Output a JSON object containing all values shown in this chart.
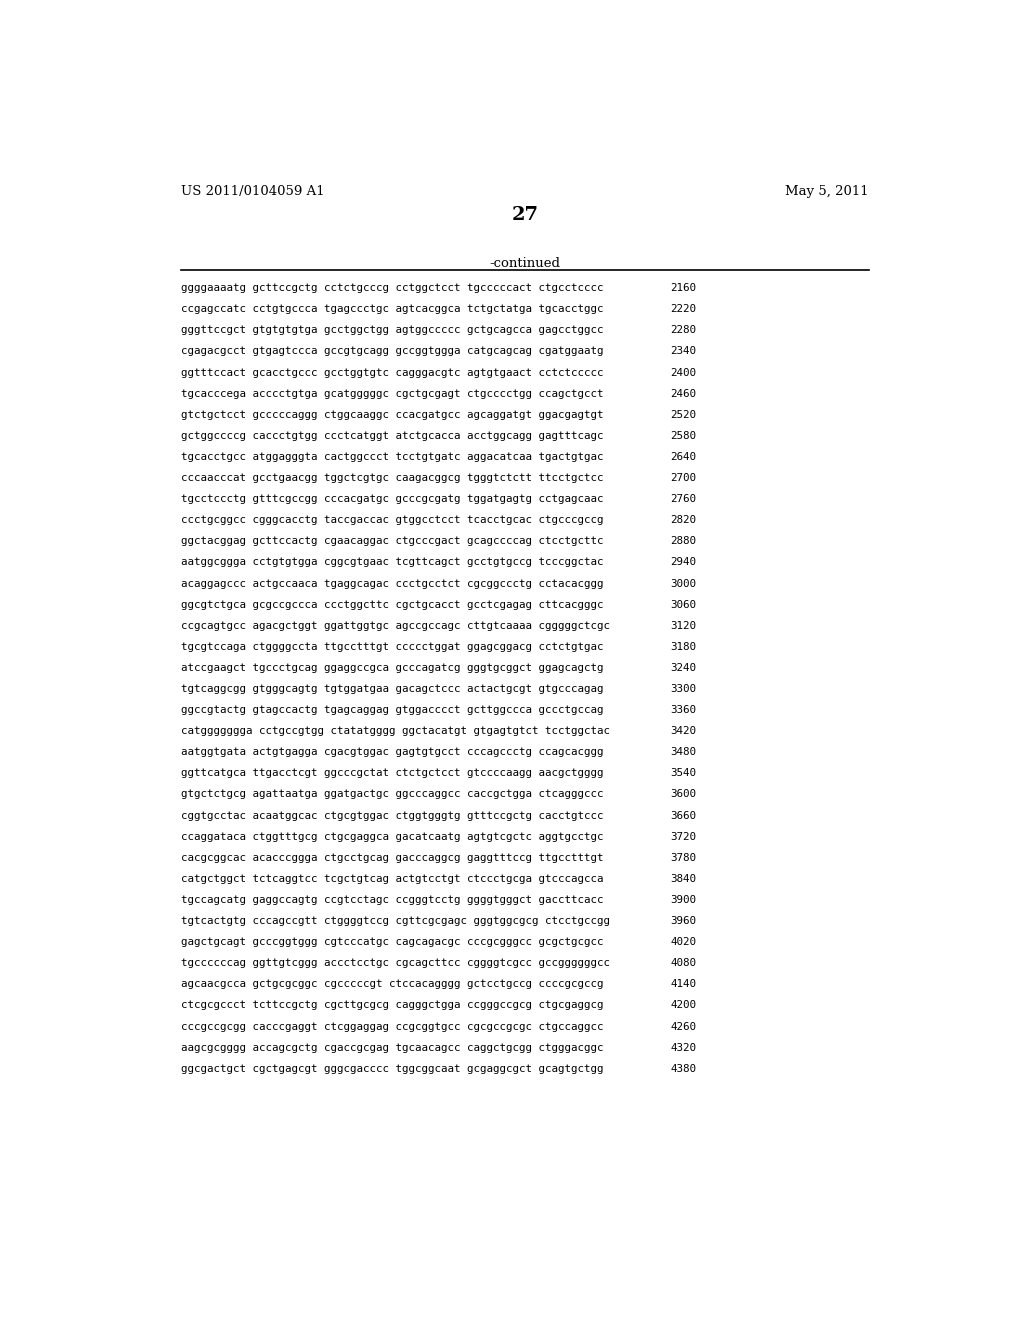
{
  "header_left": "US 2011/0104059 A1",
  "header_right": "May 5, 2011",
  "page_number": "27",
  "continued_label": "-continued",
  "background_color": "#ffffff",
  "text_color": "#000000",
  "sequence_lines": [
    [
      "ggggaaaatg gcttccgctg cctctgcccg cctggctcct tgcccccact ctgcctcccc",
      "2160"
    ],
    [
      "ccgagccatc cctgtgccca tgagccctgc agtcacggca tctgctatga tgcacctggc",
      "2220"
    ],
    [
      "gggttccgct gtgtgtgtga gcctggctgg agtggccccc gctgcagcca gagcctggcc",
      "2280"
    ],
    [
      "cgagacgcct gtgagtccca gccgtgcagg gccggtggga catgcagcag cgatggaatg",
      "2340"
    ],
    [
      "ggtttccact gcacctgccc gcctggtgtc cagggacgtc agtgtgaact cctctccccc",
      "2400"
    ],
    [
      "tgcacccega acccctgtga gcatgggggc cgctgcgagt ctgcccctgg ccagctgcct",
      "2460"
    ],
    [
      "gtctgctcct gcccccaggg ctggcaaggc ccacgatgcc agcaggatgt ggacgagtgt",
      "2520"
    ],
    [
      "gctggccccg caccctgtgg ccctcatggt atctgcacca acctggcagg gagtttcagc",
      "2580"
    ],
    [
      "tgcacctgcc atggagggta cactggccct tcctgtgatc aggacatcaa tgactgtgac",
      "2640"
    ],
    [
      "cccaacccat gcctgaacgg tggctcgtgc caagacggcg tgggtctctt ttcctgctcc",
      "2700"
    ],
    [
      "tgcctccctg gtttcgccgg cccacgatgc gcccgcgatg tggatgagtg cctgagcaac",
      "2760"
    ],
    [
      "ccctgcggcc cgggcacctg taccgaccac gtggcctcct tcacctgcac ctgcccgccg",
      "2820"
    ],
    [
      "ggctacggag gcttccactg cgaacaggac ctgcccgact gcagccccag ctcctgcttc",
      "2880"
    ],
    [
      "aatggcggga cctgtgtgga cggcgtgaac tcgttcagct gcctgtgccg tcccggctac",
      "2940"
    ],
    [
      "acaggagccc actgccaaca tgaggcagac ccctgcctct cgcggccctg cctacacggg",
      "3000"
    ],
    [
      "ggcgtctgca gcgccgccca ccctggcttc cgctgcacct gcctcgagag cttcacgggc",
      "3060"
    ],
    [
      "ccgcagtgcc agacgctggt ggattggtgc agccgccagc cttgtcaaaa cgggggctcgc",
      "3120"
    ],
    [
      "tgcgtccaga ctggggccta ttgcctttgt ccccctggat ggagcggacg cctctgtgac",
      "3180"
    ],
    [
      "atccgaagct tgccctgcag ggaggccgca gcccagatcg gggtgcggct ggagcagctg",
      "3240"
    ],
    [
      "tgtcaggcgg gtgggcagtg tgtggatgaa gacagctccc actactgcgt gtgcccagag",
      "3300"
    ],
    [
      "ggccgtactg gtagccactg tgagcaggag gtggacccct gcttggccca gccctgccag",
      "3360"
    ],
    [
      "catggggggga cctgccgtgg ctatatgggg ggctacatgt gtgagtgtct tcctggctac",
      "3420"
    ],
    [
      "aatggtgata actgtgagga cgacgtggac gagtgtgcct cccagccctg ccagcacggg",
      "3480"
    ],
    [
      "ggttcatgca ttgacctcgt ggcccgctat ctctgctcct gtccccaagg aacgctgggg",
      "3540"
    ],
    [
      "gtgctctgcg agattaatga ggatgactgc ggcccaggcc caccgctgga ctcagggccc",
      "3600"
    ],
    [
      "cggtgcctac acaatggcac ctgcgtggac ctggtgggtg gtttccgctg cacctgtccc",
      "3660"
    ],
    [
      "ccaggataca ctggtttgcg ctgcgaggca gacatcaatg agtgtcgctc aggtgcctgc",
      "3720"
    ],
    [
      "cacgcggcac acacccggga ctgcctgcag gacccaggcg gaggtttccg ttgcctttgt",
      "3780"
    ],
    [
      "catgctggct tctcaggtcc tcgctgtcag actgtcctgt ctccctgcga gtcccagcca",
      "3840"
    ],
    [
      "tgccagcatg gaggccagtg ccgtcctagc ccgggtcctg ggggtgggct gaccttcacc",
      "3900"
    ],
    [
      "tgtcactgtg cccagccgtt ctggggtccg cgttcgcgagc gggtggcgcg ctcctgccgg",
      "3960"
    ],
    [
      "gagctgcagt gcccggtggg cgtcccatgc cagcagacgc cccgcgggcc gcgctgcgcc",
      "4020"
    ],
    [
      "tgccccccag ggttgtcggg accctcctgc cgcagcttcc cggggtcgcc gccggggggcc",
      "4080"
    ],
    [
      "agcaacgcca gctgcgcggc cgcccccgt ctccacagggg gctcctgccg ccccgcgccg",
      "4140"
    ],
    [
      "ctcgcgccct tcttccgctg cgcttgcgcg cagggctgga ccgggccgcg ctgcgaggcg",
      "4200"
    ],
    [
      "cccgccgcgg cacccgaggt ctcggaggag ccgcggtgcc cgcgccgcgc ctgccaggcc",
      "4260"
    ],
    [
      "aagcgcgggg accagcgctg cgaccgcgag tgcaacagcc caggctgcgg ctgggacggc",
      "4320"
    ],
    [
      "ggcgactgct cgctgagcgt gggcgacccc tggcggcaat gcgaggcgct gcagtgctgg",
      "4380"
    ]
  ]
}
